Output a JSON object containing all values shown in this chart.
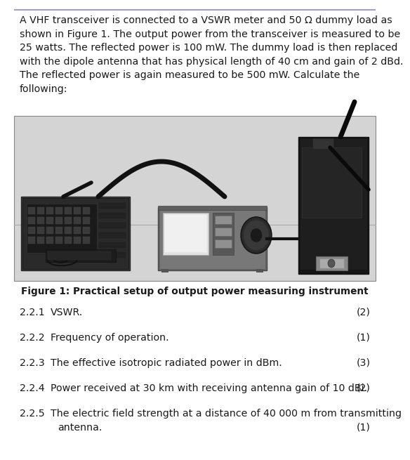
{
  "background_color": "#ffffff",
  "top_line_color": "#a0a0c0",
  "paragraph_text_lines": [
    "A VHF transceiver is connected to a VSWR meter and 50 Ω dummy load as",
    "shown in Figure 1. The output power from the transceiver is measured to be",
    "25 watts. The reflected power is 100 mW. The dummy load is then replaced",
    "with the dipole antenna that has physical length of 40 cm and gain of 2 dBd.",
    "The reflected power is again measured to be 500 mW. Calculate the",
    "following:"
  ],
  "figure_caption": "Figure 1: Practical setup of output power measuring instrument",
  "questions": [
    {
      "number": "2.2.1",
      "text": "VSWR.",
      "marks": "(2)",
      "multiline": false
    },
    {
      "number": "2.2.2",
      "text": "Frequency of operation.",
      "marks": "(1)",
      "multiline": false
    },
    {
      "number": "2.2.3",
      "text": "The effective isotropic radiated power in dBm.",
      "marks": "(3)",
      "multiline": false
    },
    {
      "number": "2.2.4",
      "text": "Power received at 30 km with receiving antenna gain of 10 dBi.",
      "marks": "(2)",
      "multiline": false
    },
    {
      "number": "2.2.5",
      "text": "The electric field strength at a distance of 40 000 m from transmitting",
      "text2": "antenna.",
      "marks": "(1)",
      "multiline": true
    }
  ],
  "font_size_para": 10.2,
  "font_size_caption": 9.8,
  "font_size_q": 10.2,
  "text_color": "#1a1a1a",
  "img_photo_bg": "#d4d4d4",
  "img_photo_light": "#e8e8e8",
  "img_photo_mid": "#b8b8b8",
  "img_photo_dark": "#404040",
  "img_photo_vdark": "#1a1a1a"
}
